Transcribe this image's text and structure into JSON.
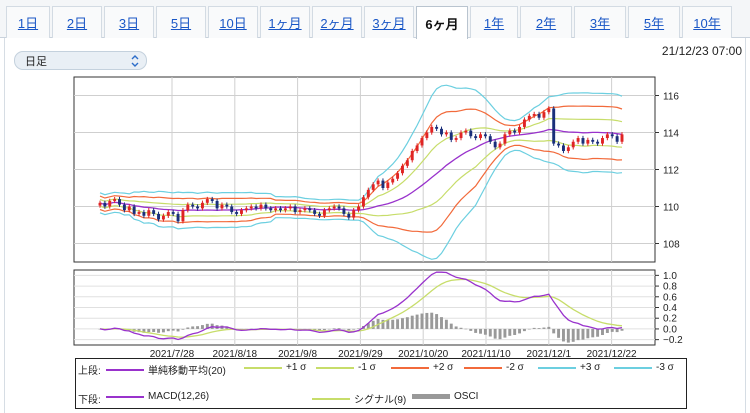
{
  "tabs": [
    {
      "label": "1日"
    },
    {
      "label": "2日"
    },
    {
      "label": "3日"
    },
    {
      "label": "5日"
    },
    {
      "label": "10日"
    },
    {
      "label": "1ヶ月"
    },
    {
      "label": "2ヶ月"
    },
    {
      "label": "3ヶ月"
    },
    {
      "label": "6ヶ月",
      "active": true
    },
    {
      "label": "1年"
    },
    {
      "label": "2年"
    },
    {
      "label": "3年"
    },
    {
      "label": "5年"
    },
    {
      "label": "10年"
    }
  ],
  "selector": {
    "value": "日足"
  },
  "datetime": "21/12/23 07:00",
  "chart_data": [
    {
      "type": "candlestick",
      "panel": "upper",
      "y_ticks": [
        "108",
        "110",
        "112",
        "114",
        "116"
      ],
      "ylim": [
        107,
        117
      ],
      "x_tick_labels": [
        "2021/7/28",
        "2021/8/18",
        "2021/9/8",
        "2021/9/29",
        "2021/10/20",
        "2021/11/10",
        "2021/12/1",
        "2021/12/22"
      ],
      "up_color": "#e02424",
      "down_color": "#1a2f7a",
      "band_colors": {
        "ma": "#9932cc",
        "sigma1": "#c7dd6a",
        "sigma2": "#f26a3b",
        "sigma3": "#6ccfe0"
      },
      "closes": [
        110.2,
        110.0,
        110.3,
        110.4,
        110.1,
        109.8,
        110.0,
        109.6,
        109.7,
        109.5,
        109.8,
        109.6,
        109.3,
        109.5,
        109.7,
        109.6,
        109.2,
        109.8,
        110.1,
        110.0,
        109.9,
        110.2,
        110.4,
        110.3,
        109.9,
        110.1,
        110.0,
        109.7,
        109.6,
        109.8,
        109.9,
        110.0,
        109.9,
        110.1,
        109.9,
        109.8,
        109.9,
        109.8,
        109.9,
        110.0,
        109.7,
        109.8,
        109.9,
        109.8,
        109.6,
        109.5,
        109.8,
        109.9,
        110.0,
        109.9,
        109.6,
        109.4,
        109.8,
        110.0,
        110.5,
        110.9,
        111.2,
        111.4,
        111.0,
        111.3,
        111.5,
        111.8,
        112.2,
        112.5,
        113.0,
        113.3,
        113.7,
        114.0,
        114.3,
        114.2,
        113.9,
        114.0,
        113.6,
        113.7,
        114.0,
        114.1,
        113.8,
        113.7,
        113.9,
        113.8,
        113.5,
        113.2,
        113.4,
        113.9,
        114.1,
        114.0,
        114.3,
        114.7,
        114.9,
        115.0,
        114.8,
        115.1,
        115.3,
        113.4,
        113.3,
        113.0,
        113.2,
        113.5,
        113.7,
        113.4,
        113.6,
        113.5,
        113.4,
        113.7,
        113.9,
        113.8,
        113.5,
        113.9
      ],
      "y_values": [],
      "x_values": []
    },
    {
      "type": "macd",
      "panel": "lower",
      "y_ticks": [
        "−0.2",
        "0.0",
        "0.2",
        "0.4",
        "0.6",
        "0.8",
        "1.0"
      ],
      "ylim": [
        -0.3,
        1.1
      ],
      "macd_color": "#9932cc",
      "signal_color": "#c7dd6a",
      "osci_color": "#999999"
    }
  ],
  "legend": {
    "upper_label": "上段:",
    "lower_label": "下段:",
    "upper_items": [
      {
        "label": "単純移動平均(20)",
        "color": "#9932cc"
      },
      {
        "label": "+1 σ",
        "color": "#c7dd6a"
      },
      {
        "label": "-1 σ",
        "color": "#c7dd6a"
      },
      {
        "label": "+2 σ",
        "color": "#f26a3b"
      },
      {
        "label": "-2 σ",
        "color": "#f26a3b"
      },
      {
        "label": "+3 σ",
        "color": "#6ccfe0"
      },
      {
        "label": "-3 σ",
        "color": "#6ccfe0"
      }
    ],
    "lower_items": [
      {
        "label": "MACD(12,26)",
        "color": "#9932cc",
        "kind": "line"
      },
      {
        "label": "シグナル(9)",
        "color": "#c7dd6a",
        "kind": "line"
      },
      {
        "label": "OSCI",
        "color": "#999999",
        "kind": "bar"
      }
    ]
  }
}
